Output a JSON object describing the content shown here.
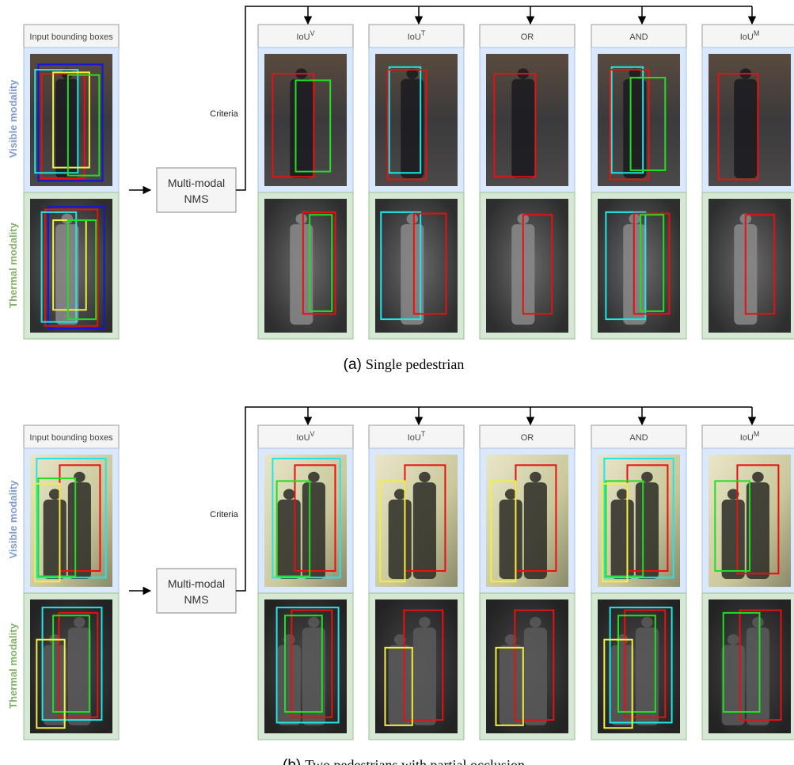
{
  "panels": [
    {
      "input_header": "Input bounding boxes",
      "visible_label": "Visible modality",
      "thermal_label": "Thermal modality",
      "criteria_label": "Criteria",
      "nms_label": [
        "Multi-modal",
        "NMS"
      ],
      "columns": [
        {
          "base": "IoU",
          "sup": "V"
        },
        {
          "base": "IoU",
          "sup": "T"
        },
        {
          "base": "OR"
        },
        {
          "base": "AND"
        },
        {
          "base": "IoU",
          "sup": "M"
        }
      ],
      "caption": {
        "letter": "(a)",
        "text": "Single pedestrian"
      }
    },
    {
      "input_header": "Input bounding boxes",
      "visible_label": "Visible modality",
      "thermal_label": "Thermal modality",
      "criteria_label": "Criteria",
      "nms_label": [
        "Multi-modal",
        "NMS"
      ],
      "columns": [
        {
          "base": "IoU",
          "sup": "V"
        },
        {
          "base": "IoU",
          "sup": "T"
        },
        {
          "base": "OR"
        },
        {
          "base": "AND"
        },
        {
          "base": "IoU",
          "sup": "M"
        }
      ],
      "caption": {
        "letter": "(b)",
        "text": "Two pedestrians with partial occlusion"
      }
    }
  ]
}
